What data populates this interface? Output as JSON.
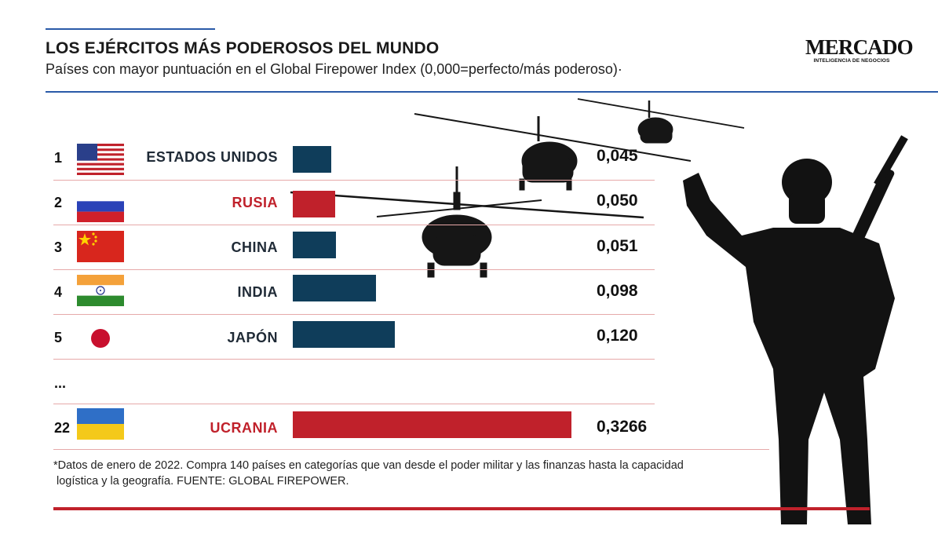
{
  "header": {
    "title": "LOS EJÉRCITOS MÁS PODEROSOS DEL MUNDO",
    "subtitle": "Países con mayor puntuación en el Global Firepower Index (0,000=perfecto/más poderoso)·"
  },
  "logo": {
    "word": "MERCADO",
    "tagline": "INTELIGENCIA DE NEGOCIOS"
  },
  "colors": {
    "bar_default": "#0f3d5a",
    "bar_highlight": "#c0212b",
    "accent_blue": "#2a5aa8",
    "accent_red": "#c0212b"
  },
  "chart_data": {
    "type": "bar",
    "orientation": "horizontal",
    "title": "LOS EJÉRCITOS MÁS PODEROSOS DEL MUNDO",
    "subtitle": "Países con mayor puntuación en el Global Firepower Index (0,000=perfecto/más poderoso)·",
    "xlim": [
      0,
      0.35
    ],
    "grid": false,
    "legend": "none",
    "rows": [
      {
        "rank": "1",
        "country": "ESTADOS UNIDOS",
        "value": 0.045,
        "label": "0,045",
        "highlight": false,
        "flag": "usa-flag"
      },
      {
        "rank": "2",
        "country": "RUSIA",
        "value": 0.05,
        "label": "0,050",
        "highlight": true,
        "flag": "russia-flag"
      },
      {
        "rank": "3",
        "country": "CHINA",
        "value": 0.051,
        "label": "0,051",
        "highlight": false,
        "flag": "china-flag"
      },
      {
        "rank": "4",
        "country": "INDIA",
        "value": 0.098,
        "label": "0,098",
        "highlight": false,
        "flag": "india-flag"
      },
      {
        "rank": "5",
        "country": "JAPÓN",
        "value": 0.12,
        "label": "0,120",
        "highlight": false,
        "flag": "japan-flag"
      },
      {
        "rank": "22",
        "country": "UCRANIA",
        "value": 0.3266,
        "label": "0,3266",
        "highlight": true,
        "flag": "ukraine-flag"
      }
    ],
    "ellipsis": "..."
  },
  "footnote": {
    "line1": "*Datos de enero de 2022. Compra 140 países en categorías que van desde el poder militar y las finanzas hasta la capacidad",
    "line2": "logística y la geografía. FUENTE: GLOBAL FIREPOWER."
  }
}
